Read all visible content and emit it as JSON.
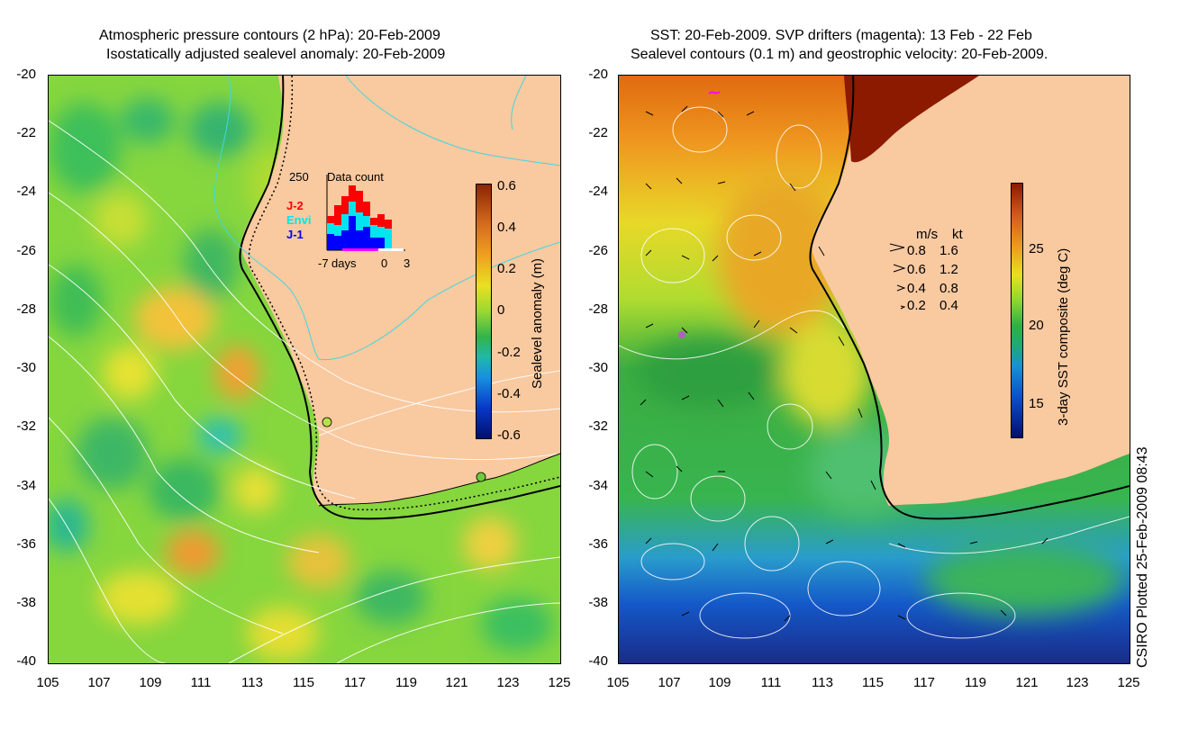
{
  "left_panel": {
    "title_line1": "Atmospheric pressure contours (2 hPa): 20-Feb-2009",
    "title_line2": "Isostatically adjusted sealevel anomaly: 20-Feb-2009",
    "colorbar_label": "Sealevel anomaly (m)",
    "colorbar_ticks": [
      "0.6",
      "0.4",
      "0.2",
      "0",
      "-0.2",
      "-0.4",
      "-0.6"
    ],
    "inset": {
      "title": "Data count",
      "ymax": "250",
      "legend": [
        {
          "label": "J-2",
          "color": "#ff0000"
        },
        {
          "label": "Envi",
          "color": "#00e5ee"
        },
        {
          "label": "J-1",
          "color": "#0000ff"
        }
      ],
      "xlabels": [
        "-7",
        "days",
        "0",
        "3"
      ]
    }
  },
  "right_panel": {
    "title_line1": "SST: 20-Feb-2009. SVP drifters (magenta): 13 Feb - 22 Feb",
    "title_line2": "Sealevel contours (0.1 m) and geostrophic velocity: 20-Feb-2009.",
    "colorbar_label": "3-day SST composite (deg C)",
    "colorbar_ticks": [
      "25",
      "20",
      "15"
    ],
    "velocity_legend": {
      "header_ms": "m/s",
      "header_kt": "kt",
      "rows": [
        {
          "ms": "0.8",
          "kt": "1.6"
        },
        {
          "ms": "0.6",
          "kt": "1.2"
        },
        {
          "ms": "0.4",
          "kt": "0.8"
        },
        {
          "ms": "0.2",
          "kt": "0.4"
        }
      ]
    }
  },
  "axes": {
    "y_ticks": [
      "-20",
      "-22",
      "-24",
      "-26",
      "-28",
      "-30",
      "-32",
      "-34",
      "-36",
      "-38",
      "-40"
    ],
    "x_ticks": [
      "105",
      "107",
      "109",
      "111",
      "113",
      "115",
      "117",
      "119",
      "121",
      "123",
      "125"
    ]
  },
  "credit": "CSIRO Plotted 25-Feb-2009 08:43",
  "colors": {
    "land": "#f9c9a0",
    "anomaly_base": "#7fd83a",
    "sst_warm": "#e05a10",
    "sst_mid": "#e8e020",
    "sst_cool": "#2aa648",
    "sst_cold": "#1040b0"
  }
}
